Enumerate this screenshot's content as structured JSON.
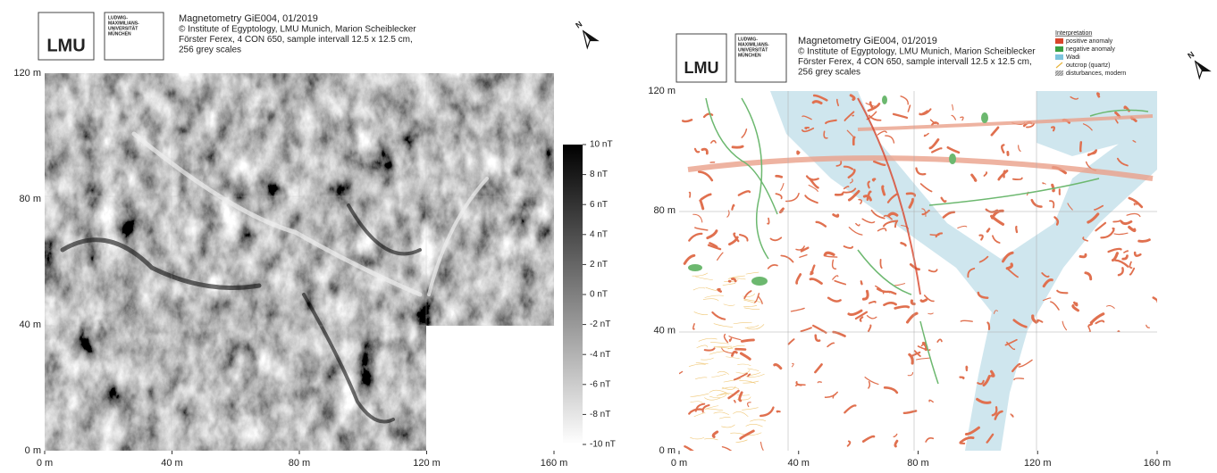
{
  "left": {
    "logo": "LMU",
    "university": [
      "LUDWIG-",
      "MAXIMILIANS-",
      "UNIVERSITÄT",
      "MÜNCHEN"
    ],
    "title": "Magnetometry GiE004, 01/2019",
    "credits": [
      "© Institute of Egyptology, LMU Munich, Marion Scheiblecker",
      "Förster Ferex, 4 CON 650, sample intervall 12.5 x 12.5 cm,",
      "256 grey scales"
    ],
    "north": "N",
    "y_ticks": [
      "120 m",
      "80 m",
      "40 m",
      "0 m"
    ],
    "x_ticks": [
      "0 m",
      "40 m",
      "80 m",
      "120 m",
      "160 m"
    ],
    "colorbar_ticks": [
      "10 nT",
      "8 nT",
      "6 nT",
      "4 nT",
      "2 nT",
      "0 nT",
      "-2 nT",
      "-4 nT",
      "-6 nT",
      "-8 nT",
      "-10 nT"
    ]
  },
  "right": {
    "logo": "LMU",
    "university": [
      "LUDWIG-",
      "MAXIMILIANS-",
      "UNIVERSITÄT",
      "MÜNCHEN"
    ],
    "title": "Magnetometry GiE004, 01/2019",
    "credits": [
      "© Institute of Egyptology, LMU Munich, Marion Scheiblecker",
      "Förster Ferex, 4 CON 650, sample intervall 12.5 x 12.5 cm,",
      "256 grey scales"
    ],
    "north": "N",
    "legend": {
      "title": "Interpretation",
      "items": [
        "positive anomaly",
        "negative anomaly",
        "Wadi",
        "outcrop (quartz)",
        "disturbances, modern"
      ]
    },
    "y_ticks": [
      "120 m",
      "80 m",
      "40 m",
      "0 m"
    ],
    "x_ticks": [
      "0 m",
      "40 m",
      "80 m",
      "120 m",
      "160 m"
    ]
  }
}
